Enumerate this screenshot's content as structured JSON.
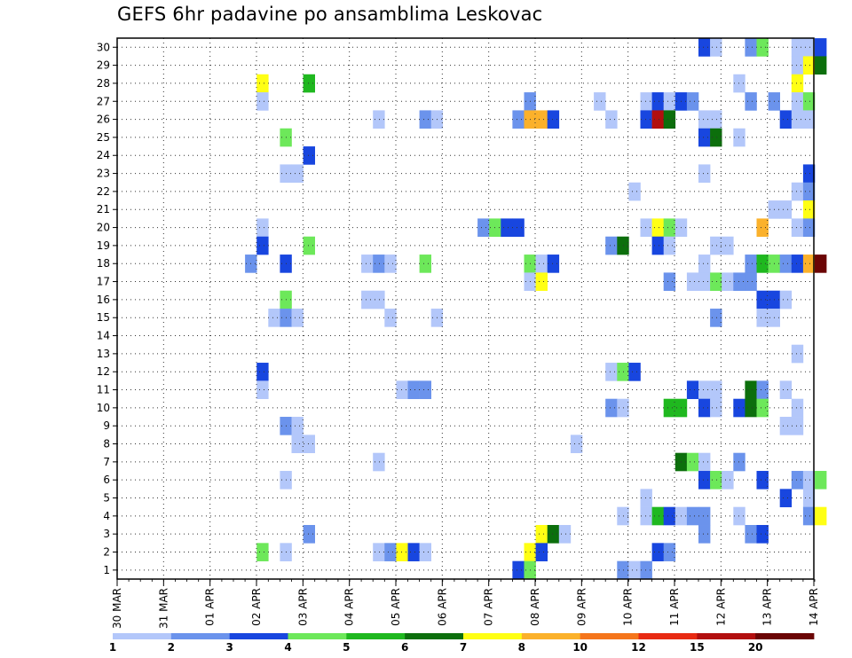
{
  "chart_data": {
    "type": "heatmap",
    "title": "GEFS 6hr padavine po ansamblima Leskovac",
    "xlabel": "",
    "ylabel": "",
    "x_tick_labels": [
      "30 MAR",
      "31 MAR",
      "01 APR",
      "02 APR",
      "03 APR",
      "04 APR",
      "05 APR",
      "06 APR",
      "07 APR",
      "08 APR",
      "09 APR",
      "10 APR",
      "11 APR",
      "12 APR",
      "13 APR",
      "14 APR"
    ],
    "y_tick_labels": [
      1,
      2,
      3,
      4,
      5,
      6,
      7,
      8,
      9,
      10,
      11,
      12,
      13,
      14,
      15,
      16,
      17,
      18,
      19,
      20,
      21,
      22,
      23,
      24,
      25,
      26,
      27,
      28,
      29,
      30
    ],
    "ylim": [
      1,
      30
    ],
    "grid": true,
    "step_count": 61,
    "colorbar": {
      "labels": [
        "1",
        "2",
        "3",
        "4",
        "5",
        "6",
        "7",
        "8",
        "10",
        "12",
        "15",
        "20"
      ],
      "colors": [
        "#b3c7fa",
        "#6b93ec",
        "#1846df",
        "#6de85a",
        "#1fb81f",
        "#0c6f0c",
        "#ffff14",
        "#fbb12b",
        "#f5751b",
        "#e82a12",
        "#b20f0f",
        "#6b0505"
      ]
    },
    "cells": [
      {
        "m": 30,
        "s": 50,
        "c": 3
      },
      {
        "m": 30,
        "s": 51,
        "c": 1
      },
      {
        "m": 30,
        "s": 54,
        "c": 2
      },
      {
        "m": 30,
        "s": 55,
        "c": 4
      },
      {
        "m": 30,
        "s": 58,
        "c": 1
      },
      {
        "m": 30,
        "s": 59,
        "c": 1
      },
      {
        "m": 30,
        "s": 60,
        "c": 3
      },
      {
        "m": 29,
        "s": 58,
        "c": 1
      },
      {
        "m": 29,
        "s": 59,
        "c": 7
      },
      {
        "m": 29,
        "s": 60,
        "c": 6
      },
      {
        "m": 28,
        "s": 12,
        "c": 7
      },
      {
        "m": 28,
        "s": 16,
        "c": 5
      },
      {
        "m": 28,
        "s": 53,
        "c": 1
      },
      {
        "m": 28,
        "s": 58,
        "c": 7
      },
      {
        "m": 27,
        "s": 12,
        "c": 1
      },
      {
        "m": 27,
        "s": 35,
        "c": 2
      },
      {
        "m": 27,
        "s": 41,
        "c": 1
      },
      {
        "m": 27,
        "s": 45,
        "c": 1
      },
      {
        "m": 27,
        "s": 46,
        "c": 3
      },
      {
        "m": 27,
        "s": 47,
        "c": 1
      },
      {
        "m": 27,
        "s": 48,
        "c": 3
      },
      {
        "m": 27,
        "s": 49,
        "c": 2
      },
      {
        "m": 27,
        "s": 54,
        "c": 2
      },
      {
        "m": 27,
        "s": 56,
        "c": 2
      },
      {
        "m": 27,
        "s": 58,
        "c": 1
      },
      {
        "m": 27,
        "s": 59,
        "c": 4
      },
      {
        "m": 26,
        "s": 22,
        "c": 1
      },
      {
        "m": 26,
        "s": 26,
        "c": 2
      },
      {
        "m": 26,
        "s": 27,
        "c": 1
      },
      {
        "m": 26,
        "s": 34,
        "c": 2
      },
      {
        "m": 26,
        "s": 35,
        "c": 8
      },
      {
        "m": 26,
        "s": 36,
        "c": 8
      },
      {
        "m": 26,
        "s": 37,
        "c": 3
      },
      {
        "m": 26,
        "s": 42,
        "c": 1
      },
      {
        "m": 26,
        "s": 45,
        "c": 3
      },
      {
        "m": 26,
        "s": 46,
        "c": 11
      },
      {
        "m": 26,
        "s": 47,
        "c": 6
      },
      {
        "m": 26,
        "s": 50,
        "c": 1
      },
      {
        "m": 26,
        "s": 51,
        "c": 1
      },
      {
        "m": 26,
        "s": 57,
        "c": 3
      },
      {
        "m": 26,
        "s": 58,
        "c": 1
      },
      {
        "m": 26,
        "s": 59,
        "c": 1
      },
      {
        "m": 25,
        "s": 14,
        "c": 4
      },
      {
        "m": 25,
        "s": 50,
        "c": 3
      },
      {
        "m": 25,
        "s": 51,
        "c": 6
      },
      {
        "m": 25,
        "s": 53,
        "c": 1
      },
      {
        "m": 24,
        "s": 16,
        "c": 3
      },
      {
        "m": 23,
        "s": 14,
        "c": 1
      },
      {
        "m": 23,
        "s": 15,
        "c": 1
      },
      {
        "m": 23,
        "s": 50,
        "c": 1
      },
      {
        "m": 23,
        "s": 59,
        "c": 3
      },
      {
        "m": 22,
        "s": 44,
        "c": 1
      },
      {
        "m": 22,
        "s": 58,
        "c": 1
      },
      {
        "m": 22,
        "s": 59,
        "c": 2
      },
      {
        "m": 21,
        "s": 56,
        "c": 1
      },
      {
        "m": 21,
        "s": 57,
        "c": 1
      },
      {
        "m": 21,
        "s": 59,
        "c": 7
      },
      {
        "m": 20,
        "s": 12,
        "c": 1
      },
      {
        "m": 20,
        "s": 31,
        "c": 2
      },
      {
        "m": 20,
        "s": 32,
        "c": 4
      },
      {
        "m": 20,
        "s": 33,
        "c": 3
      },
      {
        "m": 20,
        "s": 34,
        "c": 3
      },
      {
        "m": 20,
        "s": 45,
        "c": 1
      },
      {
        "m": 20,
        "s": 46,
        "c": 7
      },
      {
        "m": 20,
        "s": 47,
        "c": 4
      },
      {
        "m": 20,
        "s": 48,
        "c": 1
      },
      {
        "m": 20,
        "s": 55,
        "c": 8
      },
      {
        "m": 20,
        "s": 58,
        "c": 1
      },
      {
        "m": 20,
        "s": 59,
        "c": 2
      },
      {
        "m": 19,
        "s": 12,
        "c": 3
      },
      {
        "m": 19,
        "s": 16,
        "c": 4
      },
      {
        "m": 19,
        "s": 42,
        "c": 2
      },
      {
        "m": 19,
        "s": 43,
        "c": 6
      },
      {
        "m": 19,
        "s": 46,
        "c": 3
      },
      {
        "m": 19,
        "s": 47,
        "c": 1
      },
      {
        "m": 19,
        "s": 51,
        "c": 1
      },
      {
        "m": 19,
        "s": 52,
        "c": 1
      },
      {
        "m": 18,
        "s": 11,
        "c": 2
      },
      {
        "m": 18,
        "s": 14,
        "c": 3
      },
      {
        "m": 18,
        "s": 21,
        "c": 1
      },
      {
        "m": 18,
        "s": 22,
        "c": 2
      },
      {
        "m": 18,
        "s": 23,
        "c": 1
      },
      {
        "m": 18,
        "s": 26,
        "c": 4
      },
      {
        "m": 18,
        "s": 35,
        "c": 4
      },
      {
        "m": 18,
        "s": 36,
        "c": 1
      },
      {
        "m": 18,
        "s": 37,
        "c": 3
      },
      {
        "m": 18,
        "s": 50,
        "c": 1
      },
      {
        "m": 18,
        "s": 54,
        "c": 2
      },
      {
        "m": 18,
        "s": 55,
        "c": 5
      },
      {
        "m": 18,
        "s": 56,
        "c": 4
      },
      {
        "m": 18,
        "s": 57,
        "c": 2
      },
      {
        "m": 18,
        "s": 58,
        "c": 3
      },
      {
        "m": 18,
        "s": 59,
        "c": 8
      },
      {
        "m": 18,
        "s": 60,
        "c": 12
      },
      {
        "m": 17,
        "s": 35,
        "c": 1
      },
      {
        "m": 17,
        "s": 36,
        "c": 7
      },
      {
        "m": 17,
        "s": 47,
        "c": 2
      },
      {
        "m": 17,
        "s": 49,
        "c": 1
      },
      {
        "m": 17,
        "s": 50,
        "c": 1
      },
      {
        "m": 17,
        "s": 51,
        "c": 4
      },
      {
        "m": 17,
        "s": 52,
        "c": 1
      },
      {
        "m": 17,
        "s": 53,
        "c": 2
      },
      {
        "m": 17,
        "s": 54,
        "c": 2
      },
      {
        "m": 16,
        "s": 14,
        "c": 4
      },
      {
        "m": 16,
        "s": 21,
        "c": 1
      },
      {
        "m": 16,
        "s": 22,
        "c": 1
      },
      {
        "m": 16,
        "s": 55,
        "c": 3
      },
      {
        "m": 16,
        "s": 56,
        "c": 3
      },
      {
        "m": 16,
        "s": 57,
        "c": 1
      },
      {
        "m": 15,
        "s": 13,
        "c": 1
      },
      {
        "m": 15,
        "s": 14,
        "c": 2
      },
      {
        "m": 15,
        "s": 15,
        "c": 1
      },
      {
        "m": 15,
        "s": 23,
        "c": 1
      },
      {
        "m": 15,
        "s": 27,
        "c": 1
      },
      {
        "m": 15,
        "s": 51,
        "c": 2
      },
      {
        "m": 15,
        "s": 55,
        "c": 1
      },
      {
        "m": 15,
        "s": 56,
        "c": 1
      },
      {
        "m": 13,
        "s": 58,
        "c": 1
      },
      {
        "m": 12,
        "s": 12,
        "c": 3
      },
      {
        "m": 12,
        "s": 42,
        "c": 1
      },
      {
        "m": 12,
        "s": 43,
        "c": 4
      },
      {
        "m": 12,
        "s": 44,
        "c": 3
      },
      {
        "m": 11,
        "s": 12,
        "c": 1
      },
      {
        "m": 11,
        "s": 24,
        "c": 1
      },
      {
        "m": 11,
        "s": 25,
        "c": 2
      },
      {
        "m": 11,
        "s": 26,
        "c": 2
      },
      {
        "m": 11,
        "s": 49,
        "c": 3
      },
      {
        "m": 11,
        "s": 50,
        "c": 1
      },
      {
        "m": 11,
        "s": 51,
        "c": 1
      },
      {
        "m": 11,
        "s": 54,
        "c": 6
      },
      {
        "m": 11,
        "s": 55,
        "c": 2
      },
      {
        "m": 11,
        "s": 57,
        "c": 1
      },
      {
        "m": 10,
        "s": 42,
        "c": 2
      },
      {
        "m": 10,
        "s": 43,
        "c": 1
      },
      {
        "m": 10,
        "s": 47,
        "c": 5
      },
      {
        "m": 10,
        "s": 48,
        "c": 5
      },
      {
        "m": 10,
        "s": 50,
        "c": 3
      },
      {
        "m": 10,
        "s": 51,
        "c": 1
      },
      {
        "m": 10,
        "s": 53,
        "c": 3
      },
      {
        "m": 10,
        "s": 54,
        "c": 6
      },
      {
        "m": 10,
        "s": 55,
        "c": 4
      },
      {
        "m": 10,
        "s": 58,
        "c": 1
      },
      {
        "m": 9,
        "s": 14,
        "c": 2
      },
      {
        "m": 9,
        "s": 15,
        "c": 1
      },
      {
        "m": 9,
        "s": 57,
        "c": 1
      },
      {
        "m": 9,
        "s": 58,
        "c": 1
      },
      {
        "m": 8,
        "s": 15,
        "c": 1
      },
      {
        "m": 8,
        "s": 16,
        "c": 1
      },
      {
        "m": 8,
        "s": 39,
        "c": 1
      },
      {
        "m": 7,
        "s": 22,
        "c": 1
      },
      {
        "m": 7,
        "s": 48,
        "c": 6
      },
      {
        "m": 7,
        "s": 49,
        "c": 4
      },
      {
        "m": 7,
        "s": 50,
        "c": 1
      },
      {
        "m": 7,
        "s": 53,
        "c": 2
      },
      {
        "m": 6,
        "s": 14,
        "c": 1
      },
      {
        "m": 6,
        "s": 50,
        "c": 3
      },
      {
        "m": 6,
        "s": 51,
        "c": 4
      },
      {
        "m": 6,
        "s": 52,
        "c": 1
      },
      {
        "m": 6,
        "s": 55,
        "c": 3
      },
      {
        "m": 6,
        "s": 58,
        "c": 2
      },
      {
        "m": 6,
        "s": 59,
        "c": 1
      },
      {
        "m": 6,
        "s": 60,
        "c": 4
      },
      {
        "m": 5,
        "s": 45,
        "c": 1
      },
      {
        "m": 5,
        "s": 57,
        "c": 3
      },
      {
        "m": 5,
        "s": 59,
        "c": 1
      },
      {
        "m": 4,
        "s": 43,
        "c": 1
      },
      {
        "m": 4,
        "s": 45,
        "c": 1
      },
      {
        "m": 4,
        "s": 46,
        "c": 5
      },
      {
        "m": 4,
        "s": 47,
        "c": 3
      },
      {
        "m": 4,
        "s": 48,
        "c": 1
      },
      {
        "m": 4,
        "s": 49,
        "c": 2
      },
      {
        "m": 4,
        "s": 50,
        "c": 2
      },
      {
        "m": 4,
        "s": 53,
        "c": 1
      },
      {
        "m": 4,
        "s": 59,
        "c": 2
      },
      {
        "m": 4,
        "s": 60,
        "c": 7
      },
      {
        "m": 3,
        "s": 16,
        "c": 2
      },
      {
        "m": 3,
        "s": 36,
        "c": 7
      },
      {
        "m": 3,
        "s": 37,
        "c": 6
      },
      {
        "m": 3,
        "s": 38,
        "c": 1
      },
      {
        "m": 3,
        "s": 50,
        "c": 2
      },
      {
        "m": 3,
        "s": 54,
        "c": 2
      },
      {
        "m": 3,
        "s": 55,
        "c": 3
      },
      {
        "m": 2,
        "s": 12,
        "c": 4
      },
      {
        "m": 2,
        "s": 14,
        "c": 1
      },
      {
        "m": 2,
        "s": 22,
        "c": 1
      },
      {
        "m": 2,
        "s": 23,
        "c": 2
      },
      {
        "m": 2,
        "s": 24,
        "c": 7
      },
      {
        "m": 2,
        "s": 25,
        "c": 3
      },
      {
        "m": 2,
        "s": 26,
        "c": 1
      },
      {
        "m": 2,
        "s": 35,
        "c": 7
      },
      {
        "m": 2,
        "s": 36,
        "c": 3
      },
      {
        "m": 2,
        "s": 46,
        "c": 3
      },
      {
        "m": 2,
        "s": 47,
        "c": 2
      },
      {
        "m": 1,
        "s": 34,
        "c": 3
      },
      {
        "m": 1,
        "s": 35,
        "c": 4
      },
      {
        "m": 1,
        "s": 43,
        "c": 2
      },
      {
        "m": 1,
        "s": 44,
        "c": 1
      },
      {
        "m": 1,
        "s": 45,
        "c": 2
      }
    ]
  }
}
